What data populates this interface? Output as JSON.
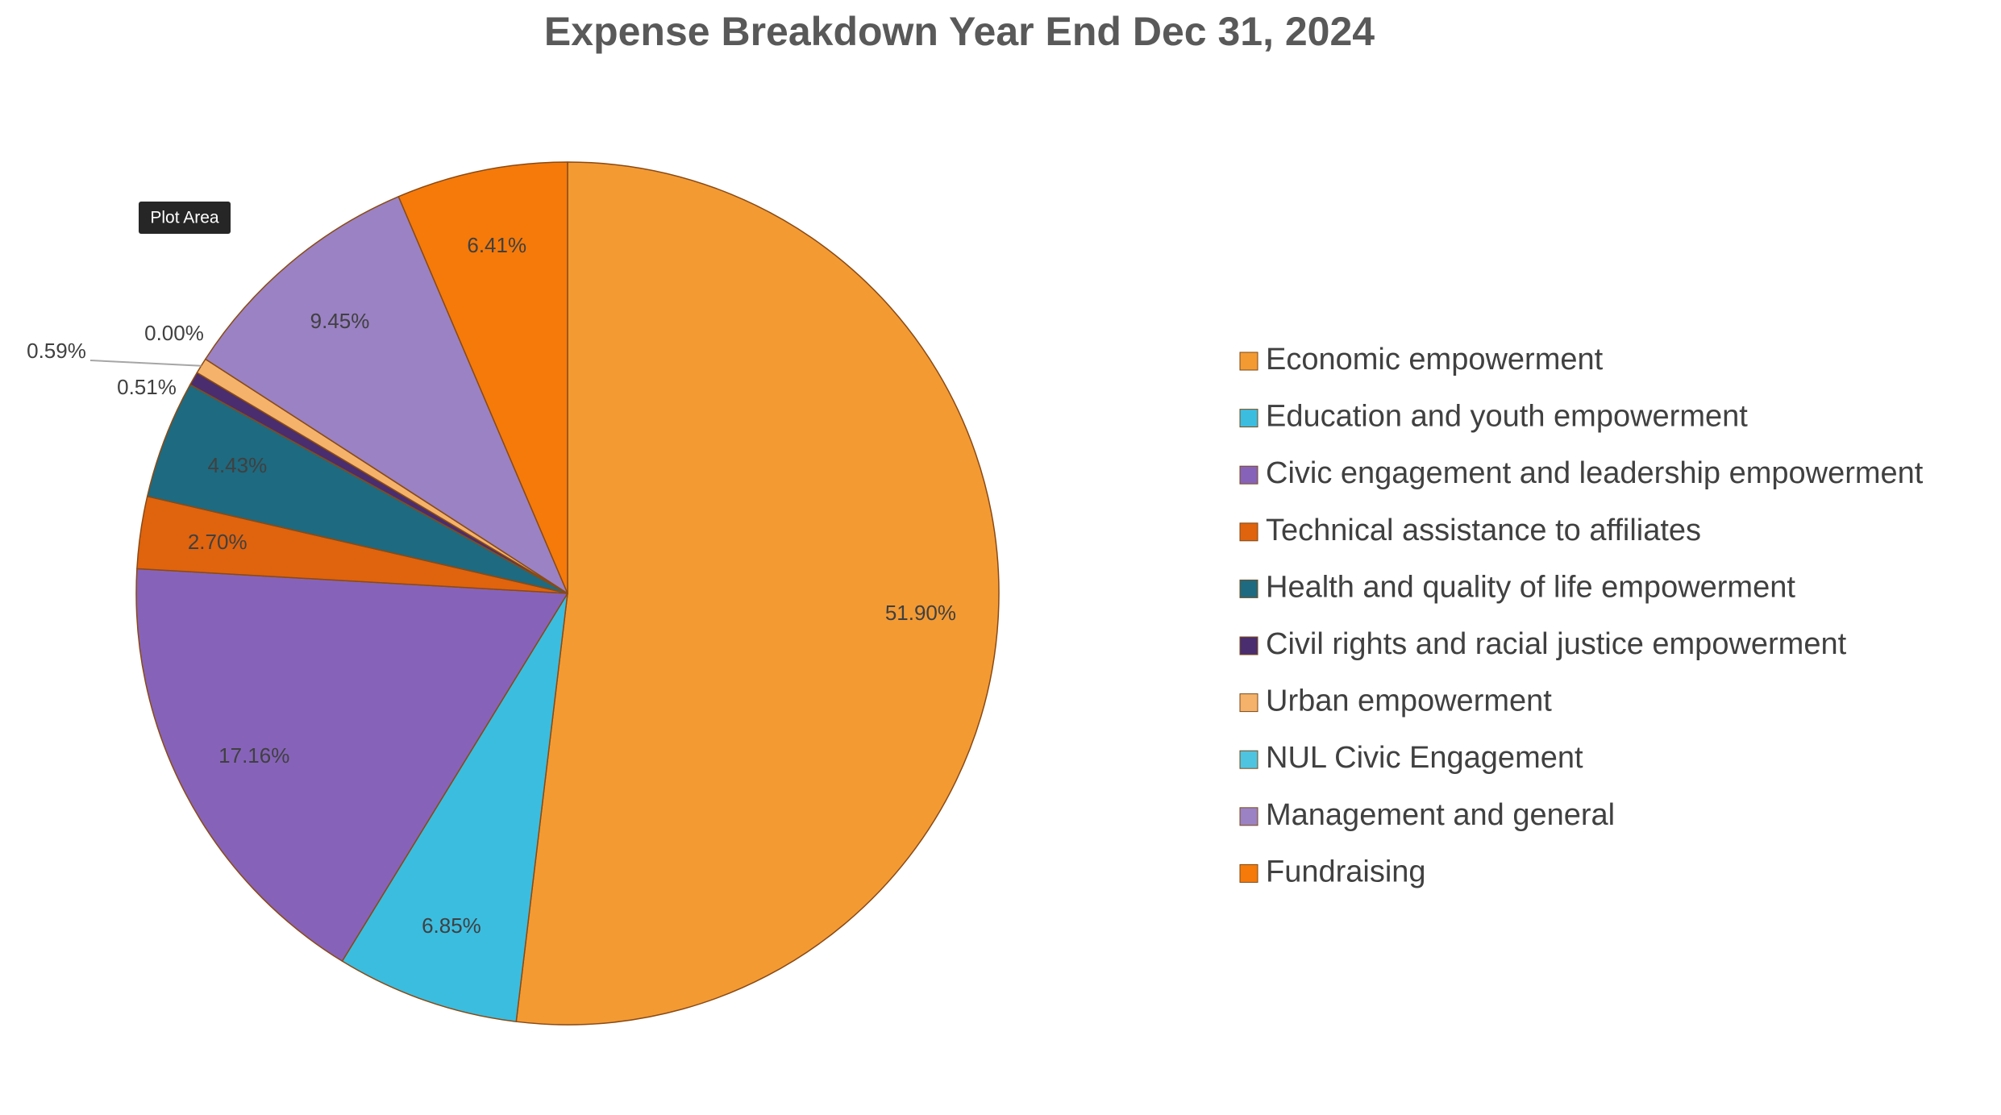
{
  "chart_data": {
    "type": "pie",
    "title": "Expense Breakdown Year End Dec 31, 2024",
    "categories": [
      "Economic empowerment",
      "Education and youth empowerment",
      "Civic engagement and leadership empowerment",
      "Technical assistance to affiliates",
      "Health and quality of life empowerment",
      "Civil rights and racial justice empowerment",
      "Urban empowerment",
      "NUL Civic Engagement",
      "Management and general",
      "Fundraising"
    ],
    "values": [
      51.9,
      6.85,
      17.16,
      2.7,
      4.43,
      0.51,
      0.59,
      0.0,
      9.45,
      6.41
    ],
    "value_labels": [
      "51.90%",
      "6.85%",
      "17.16%",
      "2.70%",
      "4.43%",
      "0.51%",
      "0.59%",
      "0.00%",
      "9.45%",
      "6.41%"
    ],
    "colors": [
      "#f39a33",
      "#3bbde0",
      "#8663b9",
      "#e0630e",
      "#1e6a80",
      "#4a2d6e",
      "#f4b26b",
      "#4fc4e0",
      "#9b82c4",
      "#f57a0a"
    ],
    "legend": "right",
    "tooltip": "Plot Area"
  }
}
